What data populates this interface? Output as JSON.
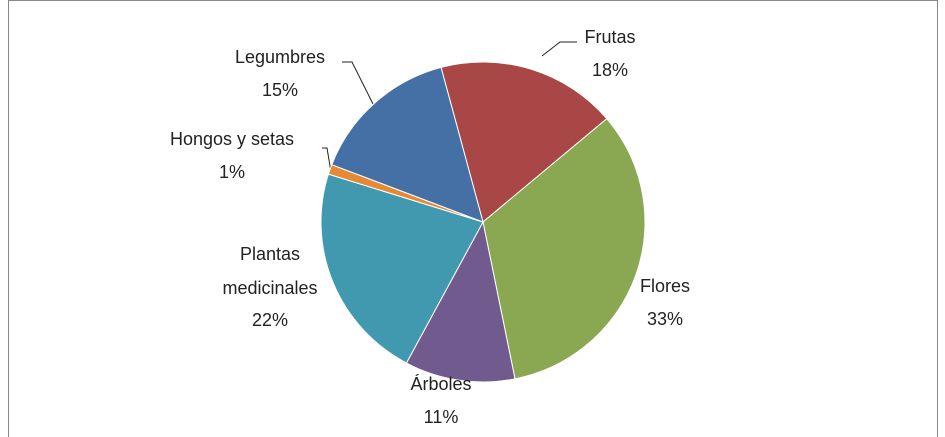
{
  "chart_data": {
    "type": "pie",
    "categories": [
      "Frutas",
      "Flores",
      "Árboles",
      "Plantas medicinales",
      "Hongos y setas",
      "Legumbres"
    ],
    "values": [
      18,
      33,
      11,
      22,
      1,
      15
    ],
    "value_labels": [
      "18%",
      "33%",
      "11%",
      "22%",
      "1%",
      "15%"
    ],
    "colors": [
      "#a84745",
      "#8aa851",
      "#715a8e",
      "#4199b0",
      "#e48935",
      "#4470a5"
    ]
  }
}
